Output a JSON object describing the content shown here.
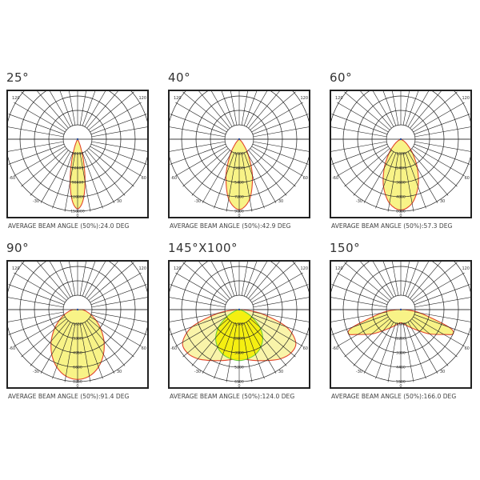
{
  "colors": {
    "grid": "#222222",
    "beam_fill": "#f7f27a",
    "beam_stroke": "#e2462c",
    "secondary_fill": "#f4ee00",
    "secondary_stroke": "#6dcf3a"
  },
  "angle_labels": [
    "120",
    "120",
    "-60",
    "60",
    "-30",
    "30",
    "0"
  ],
  "panels": [
    {
      "title": "25°",
      "caption": "AVERAGE BEAM ANGLE (50%):24.0 DEG",
      "ring_labels": [
        "30000",
        "60000",
        "90000",
        "120000",
        "150000"
      ],
      "curves": [
        {
          "angles": [
            0,
            5,
            10,
            15,
            20,
            25,
            30,
            40,
            90
          ],
          "values": [
            145000,
            128600,
            89600,
            49100,
            21100,
            7200,
            1900,
            0,
            0
          ],
          "fill": "#f7f27a",
          "stroke": "#e2462c"
        }
      ]
    },
    {
      "title": "40°",
      "caption": "AVERAGE BEAM ANGLE (50%):42.9 DEG",
      "ring_labels": [
        "1800",
        "3600",
        "5400",
        "7200",
        "9000"
      ],
      "curves": [
        {
          "angles": [
            0,
            10,
            20,
            30,
            40,
            50,
            60,
            90
          ],
          "values": [
            8800,
            7580,
            4830,
            2280,
            800,
            200,
            0,
            0
          ],
          "fill": "#f7f27a",
          "stroke": "#e2462c"
        }
      ]
    },
    {
      "title": "60°",
      "caption": "AVERAGE BEAM ANGLE (50%):57.3 DEG",
      "ring_labels": [
        "1200",
        "2400",
        "3600",
        "4800",
        "6000"
      ],
      "curves": [
        {
          "angles": [
            0,
            10,
            20,
            30,
            40,
            50,
            60,
            70,
            90
          ],
          "values": [
            5900,
            5420,
            4210,
            2760,
            1530,
            710,
            280,
            0,
            0
          ],
          "fill": "#f7f27a",
          "stroke": "#e2462c"
        }
      ]
    },
    {
      "title": "90°",
      "caption": "AVERAGE BEAM ANGLE (50%):91.4 DEG",
      "ring_labels": [
        "1650",
        "3300",
        "4950",
        "6600",
        "8250"
      ],
      "curves": [
        {
          "angles": [
            0,
            10,
            20,
            30,
            40,
            50,
            60,
            70,
            80,
            90
          ],
          "values": [
            8000,
            7740,
            7000,
            5930,
            4700,
            3490,
            2430,
            1570,
            960,
            550
          ],
          "fill": "#f7f27a",
          "stroke": "#e2462c"
        }
      ]
    },
    {
      "title": "145°X100°",
      "caption": "AVERAGE BEAM ANGLE (50%):124.0 DEG",
      "ring_labels": [
        "1300",
        "2600",
        "3900",
        "5200",
        "6500"
      ],
      "curves": [
        {
          "angles": [
            0,
            10,
            20,
            30,
            40,
            50,
            60,
            70,
            80,
            90
          ],
          "values": [
            4400,
            4600,
            4900,
            5300,
            5800,
            6100,
            5900,
            4500,
            2000,
            300
          ],
          "fill": "#f8f3a0",
          "stroke": "#e2462c"
        },
        {
          "angles": [
            0,
            10,
            20,
            30,
            40,
            50,
            60,
            70,
            80,
            90
          ],
          "values": [
            4600,
            4500,
            4300,
            3900,
            3300,
            2400,
            1300,
            500,
            100,
            0
          ],
          "fill": "#f4ee00",
          "stroke": "#6dcf3a"
        }
      ]
    },
    {
      "title": "150°",
      "caption": "AVERAGE BEAM ANGLE (50%):166.0 DEG",
      "ring_labels": [
        "1100",
        "2200",
        "3300",
        "4400",
        "5500"
      ],
      "curves": [
        {
          "angles": [
            0,
            10,
            20,
            30,
            40,
            50,
            60,
            65,
            70,
            80,
            90
          ],
          "values": [
            1000,
            1100,
            1300,
            1600,
            2100,
            2900,
            3800,
            4400,
            3900,
            1500,
            300
          ],
          "fill": "#f7f27a",
          "stroke": "#e2462c"
        }
      ]
    }
  ]
}
